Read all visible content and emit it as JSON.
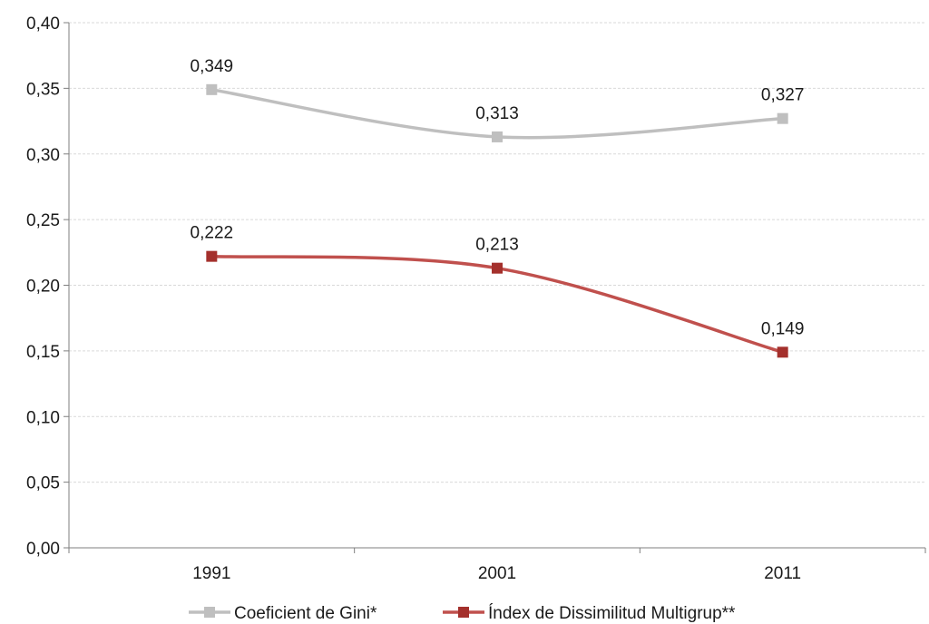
{
  "chart_data": {
    "type": "line",
    "categories": [
      "1991",
      "2001",
      "2011"
    ],
    "ylim": [
      0,
      0.4
    ],
    "yticks": [
      "0,00",
      "0,05",
      "0,10",
      "0,15",
      "0,20",
      "0,25",
      "0,30",
      "0,35",
      "0,40"
    ],
    "grid": true,
    "legend_position": "bottom",
    "series": [
      {
        "name": "Coeficient de Gini*",
        "values": [
          0.349,
          0.313,
          0.327
        ],
        "labels": [
          "0,349",
          "0,313",
          "0,327"
        ],
        "color": "#bfbfbf"
      },
      {
        "name": "Índex de Dissimilitud Multigrup**",
        "values": [
          0.222,
          0.213,
          0.149
        ],
        "labels": [
          "0,222",
          "0,213",
          "0,149"
        ],
        "color": "#c0504d",
        "marker_color": "#a4302c"
      }
    ]
  }
}
